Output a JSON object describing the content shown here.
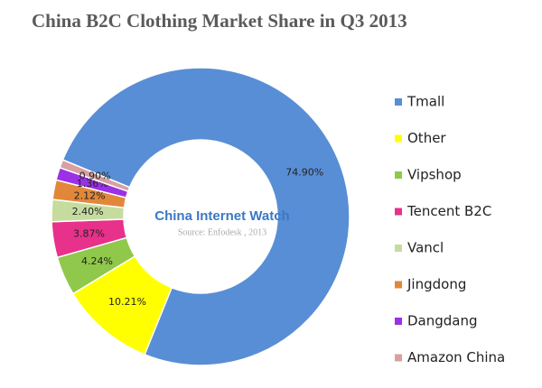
{
  "chart_data": {
    "type": "pie",
    "title": "China B2C Clothing Market Share in Q3 2013",
    "watermark": "China Internet Watch",
    "source": "Source: Enfodesk , 2013",
    "categories": [
      "Tmall",
      "Other",
      "Vipshop",
      "Tencent B2C",
      "Vancl",
      "Jingdong",
      "Dangdang",
      "Amazon China"
    ],
    "values": [
      74.9,
      10.21,
      4.24,
      3.87,
      2.4,
      2.12,
      1.36,
      0.9
    ],
    "value_labels": [
      "74.90%",
      "10.21%",
      "4.24%",
      "3.87%",
      "2.40%",
      "2.12%",
      "1.36%",
      "0.90%"
    ],
    "colors": [
      "#588ed5",
      "#ffff00",
      "#8fc84a",
      "#e8318a",
      "#c6dc9e",
      "#e2873a",
      "#9b30e6",
      "#d9a0a0"
    ],
    "legend": "right"
  }
}
